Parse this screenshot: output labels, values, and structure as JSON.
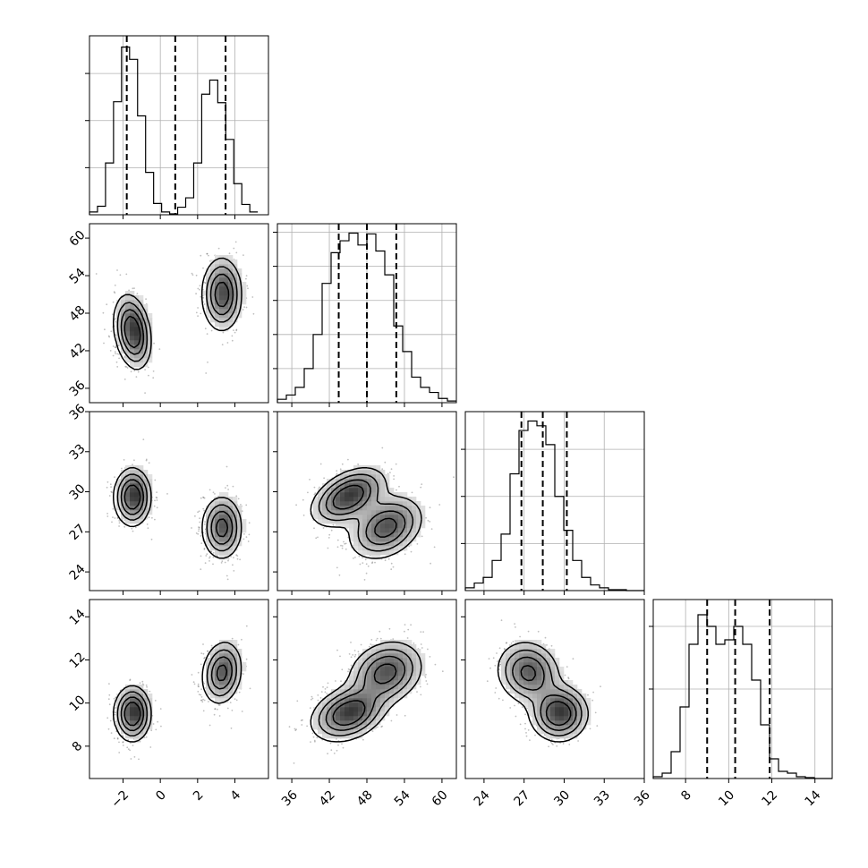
{
  "chart_data": {
    "type": "corner",
    "variables": [
      {
        "id": "v0",
        "range": [
          -3.8,
          5.8
        ],
        "ticks": [
          -2,
          0,
          2,
          4
        ],
        "tick_labels": [
          "−2",
          "0",
          "2",
          "4"
        ],
        "quantiles": [
          -1.8,
          0.8,
          3.5
        ],
        "bin_width": 0.43,
        "counts": [
          3,
          9,
          55,
          120,
          178,
          165,
          105,
          45,
          12,
          3,
          1,
          8,
          18,
          55,
          128,
          143,
          119,
          80,
          33,
          11,
          3
        ],
        "hist_max": 190,
        "hist_ticks": [
          50,
          100,
          150
        ]
      },
      {
        "id": "v1",
        "range": [
          33.7,
          62.3
        ],
        "ticks": [
          36,
          42,
          48,
          54,
          60
        ],
        "tick_labels": [
          "36",
          "42",
          "48",
          "54",
          "60"
        ],
        "quantiles": [
          43.5,
          48.0,
          52.7
        ],
        "bin_width": 1.43,
        "counts": [
          4,
          9,
          18,
          40,
          80,
          140,
          176,
          190,
          199,
          185,
          198,
          178,
          150,
          90,
          60,
          30,
          18,
          12,
          5,
          2
        ],
        "hist_max": 210,
        "hist_ticks": [
          40,
          80,
          120,
          160,
          200
        ]
      },
      {
        "id": "v2",
        "range": [
          22.6,
          36.0
        ],
        "ticks": [
          24,
          27,
          30,
          33,
          36
        ],
        "tick_labels": [
          "24",
          "27",
          "30",
          "33",
          "36"
        ],
        "quantiles": [
          26.8,
          28.4,
          30.2
        ],
        "bin_width": 0.67,
        "counts": [
          3,
          8,
          14,
          32,
          60,
          124,
          170,
          180,
          175,
          155,
          100,
          64,
          32,
          14,
          6,
          3,
          1,
          1,
          0,
          0
        ],
        "hist_max": 190,
        "hist_ticks": [
          50,
          100,
          150
        ]
      },
      {
        "id": "v3",
        "range": [
          6.5,
          14.8
        ],
        "ticks": [
          8,
          10,
          12,
          14
        ],
        "tick_labels": [
          "8",
          "10",
          "12",
          "14"
        ],
        "quantiles": [
          9.0,
          10.3,
          11.9
        ],
        "bin_width": 0.415,
        "counts": [
          2,
          6,
          30,
          80,
          150,
          183,
          170,
          150,
          155,
          170,
          150,
          110,
          60,
          22,
          8,
          6,
          2,
          1,
          0,
          0
        ],
        "hist_max": 200,
        "hist_ticks": [
          100,
          170
        ]
      }
    ],
    "components": [
      {
        "weight": 0.5,
        "mean": [
          -1.5,
          45.0,
          29.6,
          9.5
        ],
        "sd": [
          0.5,
          3.0,
          1.1,
          0.65
        ],
        "rho": [
          [
            1,
            -0.25,
            0,
            0
          ],
          [
            -0.25,
            1,
            0.45,
            0.3
          ],
          [
            0,
            0.45,
            1,
            0
          ],
          [
            0,
            0.3,
            0,
            1
          ]
        ]
      },
      {
        "weight": 0.5,
        "mean": [
          3.3,
          51.0,
          27.3,
          11.4
        ],
        "sd": [
          0.55,
          3.0,
          1.2,
          0.75
        ],
        "rho": [
          [
            1,
            0,
            0,
            0.15
          ],
          [
            0,
            1,
            0.3,
            0.2
          ],
          [
            0,
            0.3,
            1,
            -0.1
          ],
          [
            0.15,
            0.2,
            -0.1,
            1
          ]
        ]
      }
    ],
    "scatter_samples_per_panel": 900,
    "grid": true,
    "legend": "none"
  }
}
